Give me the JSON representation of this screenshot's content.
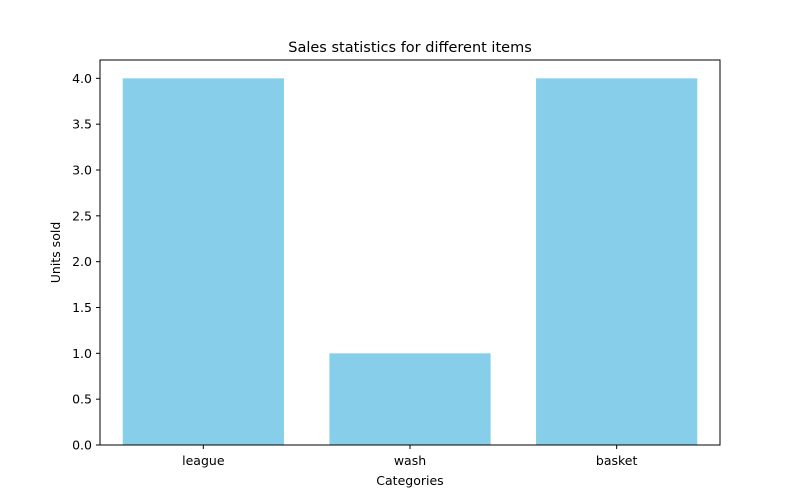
{
  "chart_data": {
    "type": "bar",
    "title": "Sales statistics for different items",
    "xlabel": "Categories",
    "ylabel": "Units sold",
    "categories": [
      "league",
      "wash",
      "basket"
    ],
    "values": [
      4,
      1,
      4
    ],
    "ylim": [
      0,
      4.2
    ],
    "yticks": [
      0.0,
      0.5,
      1.0,
      1.5,
      2.0,
      2.5,
      3.0,
      3.5,
      4.0
    ],
    "ytick_labels": [
      "0.0",
      "0.5",
      "1.0",
      "1.5",
      "2.0",
      "2.5",
      "3.0",
      "3.5",
      "4.0"
    ],
    "bar_color": "#87ceeb",
    "grid": false,
    "legend": "none"
  }
}
